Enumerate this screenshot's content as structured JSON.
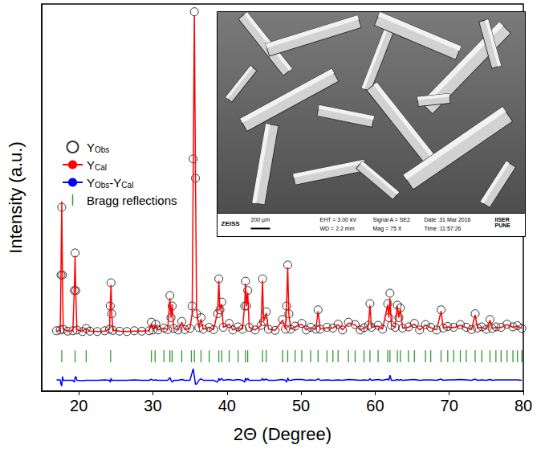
{
  "chart_data": {
    "type": "scatter",
    "x_label": "2Θ (Degree)",
    "y_label": "Intensity (a.u.)",
    "xlim": [
      15,
      80
    ],
    "xticks": [
      20,
      30,
      40,
      50,
      60,
      70,
      80
    ],
    "ylim": [
      0,
      100
    ],
    "tick_labels": "x",
    "grid": false,
    "legend": "upper left",
    "x": [
      17.0,
      17.5,
      17.6,
      17.7,
      17.8,
      17.9,
      18.5,
      19.2,
      19.4,
      19.5,
      19.6,
      19.75,
      20.5,
      21.0,
      21.5,
      22.5,
      23.5,
      24.15,
      24.25,
      24.35,
      24.45,
      24.6,
      25.5,
      26.5,
      27.5,
      28.5,
      29.5,
      29.8,
      30.0,
      30.4,
      30.7,
      31.5,
      32.0,
      32.3,
      32.45,
      32.6,
      32.8,
      33.4,
      33.9,
      34.3,
      35.0,
      35.3,
      35.45,
      35.6,
      35.75,
      35.9,
      36.2,
      36.5,
      36.8,
      37.6,
      38.2,
      38.75,
      38.9,
      39.05,
      39.3,
      39.5,
      40.3,
      40.8,
      41.5,
      42.1,
      42.4,
      42.5,
      42.65,
      42.8,
      43.0,
      43.8,
      44.6,
      44.8,
      44.95,
      45.3,
      45.6,
      46.5,
      47.5,
      47.9,
      48.05,
      48.2,
      48.35,
      48.6,
      49.2,
      50.1,
      50.7,
      51.3,
      52.0,
      52.3,
      52.6,
      53.5,
      54.3,
      55.0,
      55.6,
      56.4,
      57.3,
      58.0,
      58.5,
      59.1,
      59.3,
      59.5,
      60.4,
      61.0,
      61.7,
      61.85,
      62.0,
      62.2,
      62.7,
      63.0,
      63.2,
      63.4,
      63.7,
      64.5,
      65.3,
      66.0,
      66.8,
      67.5,
      68.3,
      68.9,
      69.2,
      69.8,
      70.6,
      71.5,
      72.3,
      73.0,
      73.5,
      73.8,
      74.4,
      75.0,
      75.5,
      75.8,
      76.3,
      77.0,
      77.8,
      78.6,
      79.2,
      79.8
    ],
    "series": [
      {
        "name": "YObs",
        "type": "scatter",
        "marker": "circle",
        "color": "#000000",
        "values": [
          15.6,
          15.8,
          30,
          47.5,
          30,
          16,
          15.5,
          15.6,
          26,
          35.7,
          26,
          15.8,
          15.4,
          16.2,
          15.5,
          15.4,
          15.6,
          16,
          22,
          28,
          20,
          15.7,
          15.5,
          15.4,
          15.6,
          15.5,
          15.6,
          17.8,
          15.8,
          17.3,
          15.8,
          16.3,
          15.9,
          24.7,
          19,
          22,
          16.2,
          15.8,
          18,
          15.9,
          16.2,
          22,
          60,
          98,
          55,
          20,
          16.4,
          19,
          16,
          16.5,
          15.9,
          20,
          29,
          21,
          23,
          16.5,
          17.5,
          15.8,
          16.6,
          16,
          22,
          28.4,
          22,
          26,
          16.5,
          15.8,
          17,
          29,
          18,
          20.5,
          16,
          15.7,
          18.5,
          16,
          22,
          32.6,
          20,
          16,
          16.8,
          17.5,
          15.8,
          16.5,
          16,
          21,
          16,
          16.5,
          16.3,
          17.3,
          15.8,
          17.8,
          17.2,
          15.8,
          16.4,
          17,
          22.6,
          16.5,
          17,
          16,
          22.6,
          19,
          25.3,
          17,
          16.5,
          22.2,
          19,
          21.5,
          16.3,
          16.6,
          17.5,
          15.8,
          17.2,
          16.5,
          15.8,
          21,
          16.3,
          16.7,
          16.5,
          17.2,
          16.5,
          15.9,
          20,
          16.3,
          16.6,
          16,
          18.5,
          16.2,
          16.6,
          16.5,
          17.3,
          16.6,
          16.9,
          16.2
        ]
      },
      {
        "name": "YCal",
        "type": "line",
        "line_style": "solid",
        "color": "#ff0000",
        "values": [
          15.5,
          15.7,
          31,
          49,
          29,
          16,
          15.5,
          15.6,
          26.5,
          35,
          25,
          15.8,
          15.5,
          16.2,
          15.5,
          15.4,
          15.5,
          16,
          22.5,
          27.5,
          20,
          15.7,
          15.5,
          15.4,
          15.5,
          15.5,
          15.6,
          17.5,
          15.8,
          17.2,
          15.8,
          16.3,
          15.9,
          24,
          19,
          22.5,
          16.2,
          15.8,
          17.8,
          15.9,
          16.2,
          20,
          57,
          97,
          56,
          21,
          16.4,
          18.6,
          16,
          16.5,
          15.9,
          20.5,
          28.5,
          21,
          22.5,
          16.5,
          17.3,
          15.8,
          16.4,
          16,
          22.5,
          27.8,
          22,
          25.5,
          16.5,
          15.8,
          17,
          28.5,
          18,
          20.2,
          16,
          15.7,
          18.3,
          16,
          22.5,
          32,
          20,
          16,
          16.6,
          17.3,
          15.8,
          16.4,
          16,
          20.6,
          16,
          16.4,
          16.3,
          17.2,
          15.8,
          17.6,
          17.1,
          15.8,
          16.3,
          17,
          22.2,
          16.5,
          16.8,
          16,
          22.3,
          19,
          24,
          17,
          16.5,
          22,
          19,
          21.3,
          16.3,
          16.5,
          17.3,
          15.8,
          17.1,
          16.4,
          15.8,
          20.7,
          16.3,
          16.6,
          16.4,
          17,
          16.4,
          15.9,
          19.7,
          16.3,
          16.5,
          16,
          18.3,
          16.2,
          16.5,
          16.4,
          17.2,
          16.5,
          16.8,
          16.2
        ]
      },
      {
        "name": "YObs-YCal",
        "type": "line",
        "line_style": "solid",
        "color": "#0000ff",
        "values": [
          2.9,
          2.9,
          1.8,
          1.3,
          3.8,
          2.8,
          2.8,
          2.8,
          2.3,
          3.5,
          3.8,
          2.8,
          2.7,
          2.8,
          2.8,
          2.8,
          2.9,
          2.8,
          2.3,
          3.3,
          2.8,
          2.8,
          2.8,
          2.8,
          2.9,
          2.8,
          2.8,
          3.1,
          2.8,
          2.9,
          2.8,
          2.8,
          2.8,
          3.5,
          2.8,
          2.3,
          2.8,
          2.8,
          3.0,
          2.8,
          2.8,
          4.8,
          5.8,
          3.8,
          1.8,
          1.8,
          2.8,
          3.2,
          2.8,
          2.8,
          2.8,
          2.3,
          3.3,
          2.8,
          3.3,
          2.8,
          3.0,
          2.8,
          3.0,
          2.8,
          2.3,
          3.4,
          2.8,
          3.3,
          2.8,
          2.8,
          2.8,
          3.3,
          2.8,
          3.1,
          2.8,
          2.8,
          3.0,
          2.8,
          2.3,
          3.4,
          2.8,
          2.8,
          3.0,
          3.0,
          2.8,
          2.9,
          2.8,
          3.2,
          2.8,
          2.9,
          2.8,
          2.9,
          2.8,
          3.0,
          2.9,
          2.8,
          2.9,
          2.8,
          3.2,
          2.8,
          3.0,
          2.8,
          3.1,
          2.8,
          4.1,
          2.8,
          2.8,
          3.0,
          2.8,
          3.0,
          2.8,
          2.9,
          3.0,
          2.8,
          2.9,
          2.9,
          2.8,
          3.1,
          2.8,
          2.9,
          2.9,
          3.0,
          2.9,
          2.8,
          3.1,
          2.8,
          2.9,
          2.8,
          3.0,
          2.8,
          2.9,
          2.9,
          2.9,
          2.9,
          2.9,
          2.8
        ]
      },
      {
        "name": "Bragg reflections",
        "type": "scatter",
        "marker": "vline",
        "color": "#008000",
        "x": [
          17.7,
          19.5,
          21.0,
          24.3,
          29.8,
          30.3,
          31.5,
          32.3,
          32.6,
          33.9,
          35.2,
          35.6,
          36.5,
          37.6,
          38.9,
          39.3,
          40.3,
          41.5,
          42.5,
          42.8,
          44.8,
          45.3,
          47.5,
          48.2,
          49.2,
          50.1,
          51.3,
          52.3,
          53.5,
          54.3,
          55.0,
          56.4,
          57.3,
          58.5,
          59.3,
          60.4,
          61.7,
          62.0,
          63.0,
          63.4,
          64.5,
          65.3,
          66.8,
          67.5,
          68.9,
          69.8,
          70.6,
          71.5,
          72.3,
          73.5,
          74.4,
          75.5,
          76.3,
          77.0,
          77.8,
          78.6,
          79.2,
          79.8
        ],
        "values": [
          9,
          9,
          9,
          9,
          9,
          9,
          9,
          9,
          9,
          9,
          9,
          9,
          9,
          9,
          9,
          9,
          9,
          9,
          9,
          9,
          9,
          9,
          9,
          9,
          9,
          9,
          9,
          9,
          9,
          9,
          9,
          9,
          9,
          9,
          9,
          9,
          9,
          9,
          9,
          9,
          9,
          9,
          9,
          9,
          9,
          9,
          9,
          9,
          9,
          9,
          9,
          9,
          9,
          9,
          9,
          9,
          9,
          9
        ]
      }
    ],
    "inset": {
      "scale_bar": "200 µm",
      "info": [
        "EHT = 3.00 kV",
        "WD = 2.2 mm",
        "Signal A = SE2",
        "Mag = 75 X",
        "Date :31 Mar 2016",
        "Time :11:57:26"
      ],
      "logos": [
        "ZEISS",
        "IISER PUNE"
      ]
    }
  }
}
